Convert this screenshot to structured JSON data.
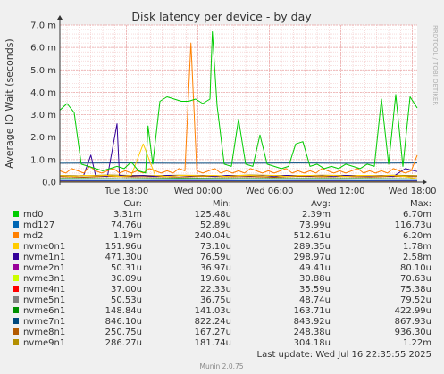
{
  "chart_data": {
    "type": "line",
    "title": "Disk latency per device - by day",
    "ylabel": "Average IO Wait (seconds)",
    "xlabel": "",
    "ylim": [
      0,
      0.007
    ],
    "yticks": [
      {
        "value": 0,
        "label": "0.0"
      },
      {
        "value": 0.001,
        "label": "1.0 m"
      },
      {
        "value": 0.002,
        "label": "2.0 m"
      },
      {
        "value": 0.003,
        "label": "3.0 m"
      },
      {
        "value": 0.004,
        "label": "4.0 m"
      },
      {
        "value": 0.005,
        "label": "5.0 m"
      },
      {
        "value": 0.006,
        "label": "6.0 m"
      },
      {
        "value": 0.007,
        "label": "7.0 m"
      }
    ],
    "xlim": [
      0,
      30
    ],
    "xticks": [
      {
        "value": 5.6,
        "label": "Tue 18:00"
      },
      {
        "value": 11.6,
        "label": "Wed 00:00"
      },
      {
        "value": 17.6,
        "label": "Wed 06:00"
      },
      {
        "value": 23.6,
        "label": "Wed 12:00"
      },
      {
        "value": 29.6,
        "label": "Wed 18:00"
      }
    ],
    "grid": true,
    "legend_position": "bottom",
    "side_label": "RRDTOOL / TOBI OETIKER",
    "footer": "Munin 2.0.75",
    "last_update": "Last update: Wed Jul 16 22:35:55 2025",
    "columns": [
      "Cur:",
      "Min:",
      "Avg:",
      "Max:"
    ],
    "series": [
      {
        "name": "md0",
        "color": "#00cc00",
        "cur": "3.31m",
        "min": "125.48u",
        "avg": "2.39m",
        "max": "6.70m",
        "x": [
          0,
          0.6,
          1.2,
          1.8,
          2.4,
          3.0,
          3.6,
          4.2,
          4.8,
          5.4,
          6.0,
          6.6,
          7.2,
          7.4,
          7.8,
          8.4,
          9.0,
          9.6,
          10.2,
          10.8,
          11.4,
          12.0,
          12.6,
          12.8,
          13.2,
          13.8,
          14.4,
          15.0,
          15.6,
          16.2,
          16.8,
          17.4,
          18.0,
          18.6,
          19.2,
          19.8,
          20.4,
          21.0,
          21.6,
          22.2,
          22.8,
          23.4,
          24.0,
          24.6,
          25.2,
          25.8,
          26.4,
          27.0,
          27.6,
          28.2,
          28.8,
          29.4,
          30.0
        ],
        "y": [
          0.0032,
          0.0035,
          0.0031,
          0.0008,
          0.0007,
          0.0006,
          0.0005,
          0.0006,
          0.0007,
          0.0006,
          0.0009,
          0.0005,
          0.0004,
          0.0025,
          0.0008,
          0.0036,
          0.0038,
          0.0037,
          0.0036,
          0.0036,
          0.0037,
          0.0035,
          0.0037,
          0.0067,
          0.0034,
          0.0008,
          0.0007,
          0.0028,
          0.0008,
          0.0007,
          0.0021,
          0.0008,
          0.0007,
          0.0006,
          0.0007,
          0.0017,
          0.0018,
          0.0007,
          0.0008,
          0.0006,
          0.0007,
          0.0006,
          0.0008,
          0.0007,
          0.0006,
          0.0008,
          0.0007,
          0.0037,
          0.0008,
          0.0039,
          0.0007,
          0.0038,
          0.0033
        ]
      },
      {
        "name": "md127",
        "color": "#0066b3",
        "cur": "74.76u",
        "min": "52.89u",
        "avg": "73.99u",
        "max": "116.73u",
        "x": [
          0,
          5,
          10,
          15,
          20,
          25,
          30
        ],
        "y": [
          7.5e-05,
          7e-05,
          8e-05,
          7e-05,
          7.5e-05,
          7e-05,
          7.5e-05
        ]
      },
      {
        "name": "md2",
        "color": "#ff8000",
        "cur": "1.19m",
        "min": "240.04u",
        "avg": "512.61u",
        "max": "6.20m",
        "x": [
          0,
          0.5,
          1.0,
          1.5,
          2.0,
          2.5,
          3.0,
          3.5,
          4.0,
          4.5,
          5.0,
          5.5,
          6.0,
          6.5,
          7.0,
          7.5,
          8.0,
          8.5,
          9.0,
          9.5,
          10.0,
          10.5,
          11.0,
          11.5,
          12.0,
          12.5,
          13.0,
          13.5,
          14.0,
          14.5,
          15.0,
          15.5,
          16.0,
          16.5,
          17.0,
          17.5,
          18.0,
          18.5,
          19.0,
          19.5,
          20.0,
          20.5,
          21.0,
          21.5,
          22.0,
          22.5,
          23.0,
          23.5,
          24.0,
          24.5,
          25.0,
          25.5,
          26.0,
          26.5,
          27.0,
          27.5,
          28.0,
          28.5,
          29.0,
          29.5,
          30.0
        ],
        "y": [
          0.0005,
          0.0004,
          0.0006,
          0.0005,
          0.0004,
          0.0007,
          0.0005,
          0.0004,
          0.0005,
          0.0006,
          0.0004,
          0.0005,
          0.0004,
          0.0005,
          0.0004,
          0.0006,
          0.0005,
          0.0004,
          0.0005,
          0.0004,
          0.0006,
          0.0005,
          0.0062,
          0.0005,
          0.0004,
          0.0005,
          0.0006,
          0.0004,
          0.0005,
          0.0004,
          0.0005,
          0.0004,
          0.0006,
          0.0005,
          0.0004,
          0.0005,
          0.0004,
          0.0005,
          0.0006,
          0.0004,
          0.0005,
          0.0004,
          0.0005,
          0.0004,
          0.0006,
          0.0005,
          0.0004,
          0.0005,
          0.0004,
          0.0005,
          0.0006,
          0.0004,
          0.0005,
          0.0004,
          0.0005,
          0.0004,
          0.0006,
          0.0005,
          0.0004,
          0.0005,
          0.0012
        ]
      },
      {
        "name": "nvme0n1",
        "color": "#ffcc00",
        "cur": "151.96u",
        "min": "73.10u",
        "avg": "289.35u",
        "max": "1.78m",
        "x": [
          0,
          1,
          2,
          3,
          4,
          5,
          6,
          7,
          8,
          9,
          10,
          11,
          12,
          13,
          14,
          15,
          16,
          17,
          18,
          19,
          20,
          21,
          22,
          23,
          24,
          25,
          26,
          27,
          28,
          29,
          30
        ],
        "y": [
          0.0003,
          0.00025,
          0.0003,
          0.00028,
          0.0003,
          0.00025,
          0.0003,
          0.0017,
          0.0003,
          0.00025,
          0.0003,
          0.0003,
          0.00028,
          0.0003,
          0.00025,
          0.0003,
          0.0003,
          0.00028,
          0.0003,
          0.00025,
          0.0003,
          0.0003,
          0.00028,
          0.0003,
          0.00025,
          0.0003,
          0.0003,
          0.00028,
          0.0003,
          0.00025,
          0.00015
        ]
      },
      {
        "name": "nvme1n1",
        "color": "#330099",
        "cur": "471.30u",
        "min": "76.59u",
        "avg": "298.97u",
        "max": "2.58m",
        "x": [
          0,
          1,
          2,
          2.6,
          3,
          4,
          4.8,
          5,
          6,
          7,
          8,
          9,
          10,
          11,
          12,
          13,
          14,
          15,
          16,
          17,
          18,
          19,
          20,
          21,
          22,
          23,
          24,
          25,
          26,
          27,
          28,
          29,
          30
        ],
        "y": [
          0.0003,
          0.00025,
          0.0003,
          0.0012,
          0.0003,
          0.00025,
          0.0026,
          0.0003,
          0.00028,
          0.0003,
          0.00025,
          0.0003,
          0.0003,
          0.00028,
          0.0003,
          0.00025,
          0.0003,
          0.0003,
          0.00028,
          0.0003,
          0.00025,
          0.0003,
          0.0003,
          0.00028,
          0.0003,
          0.00025,
          0.0003,
          0.0003,
          0.00028,
          0.0003,
          0.00025,
          0.0006,
          0.00047
        ]
      },
      {
        "name": "nvme2n1",
        "color": "#990099",
        "cur": "50.31u",
        "min": "36.97u",
        "avg": "49.41u",
        "max": "80.10u",
        "x": [
          0,
          10,
          20,
          30
        ],
        "y": [
          5e-05,
          5e-05,
          5e-05,
          5e-05
        ]
      },
      {
        "name": "nvme3n1",
        "color": "#ccff00",
        "cur": "30.09u",
        "min": "19.60u",
        "avg": "30.88u",
        "max": "70.63u",
        "x": [
          0,
          10,
          20,
          30
        ],
        "y": [
          3e-05,
          3e-05,
          3e-05,
          3e-05
        ]
      },
      {
        "name": "nvme4n1",
        "color": "#ff0000",
        "cur": "37.00u",
        "min": "22.33u",
        "avg": "35.59u",
        "max": "75.38u",
        "x": [
          0,
          10,
          20,
          30
        ],
        "y": [
          3.7e-05,
          3.5e-05,
          3.6e-05,
          3.7e-05
        ]
      },
      {
        "name": "nvme5n1",
        "color": "#808080",
        "cur": "50.53u",
        "min": "36.75u",
        "avg": "48.74u",
        "max": "79.52u",
        "x": [
          0,
          10,
          20,
          30
        ],
        "y": [
          5e-05,
          5e-05,
          5e-05,
          5e-05
        ]
      },
      {
        "name": "nvme6n1",
        "color": "#008f00",
        "cur": "148.84u",
        "min": "141.03u",
        "avg": "163.71u",
        "max": "422.99u",
        "x": [
          0,
          5,
          10,
          15,
          20,
          25,
          30
        ],
        "y": [
          0.00016,
          0.00015,
          0.00017,
          0.00016,
          0.00016,
          0.00016,
          0.00015
        ]
      },
      {
        "name": "nvme7n1",
        "color": "#00487d",
        "cur": "846.10u",
        "min": "822.24u",
        "avg": "843.92u",
        "max": "867.93u",
        "x": [
          0,
          5,
          10,
          15,
          20,
          25,
          30
        ],
        "y": [
          0.00084,
          0.00085,
          0.00084,
          0.00084,
          0.00085,
          0.00084,
          0.00085
        ]
      },
      {
        "name": "nvme8n1",
        "color": "#b35a00",
        "cur": "250.75u",
        "min": "167.27u",
        "avg": "248.38u",
        "max": "936.30u",
        "x": [
          0,
          2,
          4,
          6,
          8,
          10,
          12,
          14,
          16,
          18,
          20,
          22,
          24,
          26,
          28,
          30
        ],
        "y": [
          0.00025,
          0.00022,
          0.00026,
          0.00024,
          0.00025,
          0.00023,
          0.00026,
          0.00024,
          0.00025,
          0.00022,
          0.00026,
          0.00024,
          0.00025,
          0.00023,
          0.00026,
          0.00025
        ]
      },
      {
        "name": "nvme9n1",
        "color": "#b38f00",
        "cur": "286.27u",
        "min": "181.74u",
        "avg": "304.18u",
        "max": "1.22m",
        "x": [
          0,
          2,
          4,
          6,
          8,
          10,
          12,
          14,
          16,
          18,
          20,
          22,
          24,
          26,
          28,
          30
        ],
        "y": [
          0.0003,
          0.00028,
          0.00032,
          0.0003,
          0.00029,
          0.00031,
          0.0003,
          0.00028,
          0.00032,
          0.0003,
          0.00029,
          0.00031,
          0.0003,
          0.00028,
          0.00031,
          0.00029
        ]
      }
    ]
  }
}
